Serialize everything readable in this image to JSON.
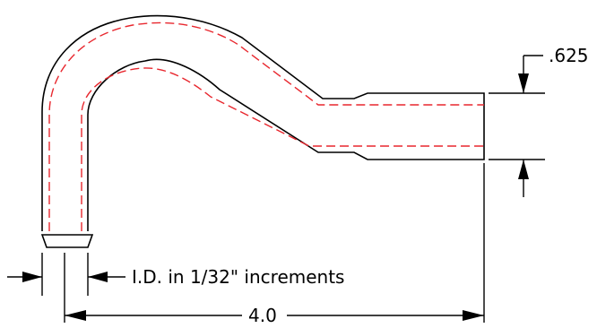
{
  "drawing": {
    "dim_height": ".625",
    "dim_id_note": "I.D. in 1/32\" increments",
    "dim_length": "4.0"
  },
  "colors": {
    "outline": "#000000",
    "centerline": "#e8272e",
    "background": "#ffffff"
  }
}
